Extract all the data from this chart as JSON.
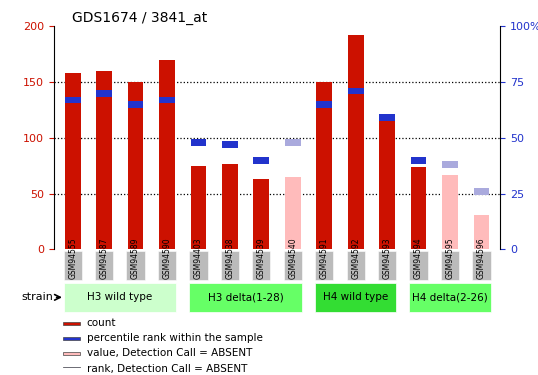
{
  "title": "GDS1674 / 3841_at",
  "samples": [
    "GSM94555",
    "GSM94587",
    "GSM94589",
    "GSM94590",
    "GSM94403",
    "GSM94538",
    "GSM94539",
    "GSM94540",
    "GSM94591",
    "GSM94592",
    "GSM94593",
    "GSM94594",
    "GSM94595",
    "GSM94596"
  ],
  "count_values": [
    158,
    160,
    150,
    170,
    75,
    77,
    63,
    0,
    150,
    192,
    119,
    74,
    0,
    0
  ],
  "rank_values": [
    67,
    70,
    65,
    67,
    48,
    47,
    40,
    0,
    65,
    71,
    59,
    40,
    0,
    0
  ],
  "absent_count": [
    0,
    0,
    0,
    0,
    0,
    0,
    0,
    65,
    0,
    0,
    0,
    0,
    67,
    31
  ],
  "absent_rank": [
    0,
    0,
    0,
    0,
    0,
    0,
    0,
    48,
    0,
    0,
    0,
    0,
    38,
    26
  ],
  "groups": [
    {
      "label": "H3 wild type",
      "start": 0,
      "end": 4,
      "color": "#ccffcc"
    },
    {
      "label": "H3 delta(1-28)",
      "start": 4,
      "end": 8,
      "color": "#66ff66"
    },
    {
      "label": "H4 wild type",
      "start": 8,
      "end": 11,
      "color": "#33dd33"
    },
    {
      "label": "H4 delta(2-26)",
      "start": 11,
      "end": 14,
      "color": "#66ff66"
    }
  ],
  "ylim_left": [
    0,
    200
  ],
  "ylim_right": [
    0,
    100
  ],
  "yticks_left": [
    0,
    50,
    100,
    150,
    200
  ],
  "yticks_right": [
    0,
    25,
    50,
    75,
    100
  ],
  "ytick_labels_right": [
    "0",
    "25",
    "50",
    "75",
    "100%"
  ],
  "bar_color_red": "#cc1100",
  "bar_color_blue": "#2233cc",
  "bar_color_pink": "#ffbbbb",
  "bar_color_lightblue": "#aaaadd",
  "bg_color": "#ffffff",
  "plot_bg": "#ffffff",
  "gray_color": "#bbbbbb",
  "legend_items": [
    {
      "color": "#cc1100",
      "label": "count"
    },
    {
      "color": "#2233cc",
      "label": "percentile rank within the sample"
    },
    {
      "color": "#ffbbbb",
      "label": "value, Detection Call = ABSENT"
    },
    {
      "color": "#aaaadd",
      "label": "rank, Detection Call = ABSENT"
    }
  ]
}
